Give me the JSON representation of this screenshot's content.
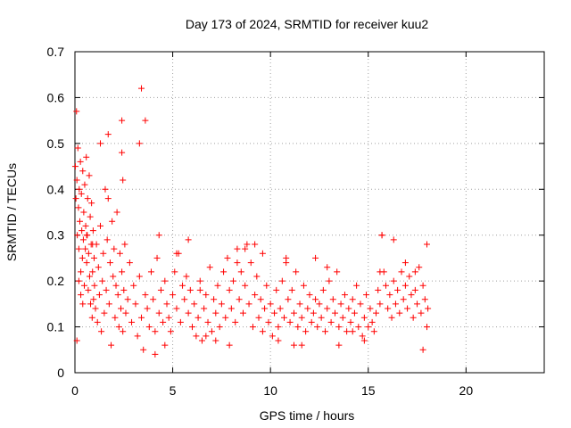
{
  "chart_data": {
    "type": "scatter",
    "title": "Day 173 of 2024, SRMTID for receiver kuu2",
    "xlabel": "GPS time / hours",
    "ylabel": "SRMTID / TECUs",
    "xlim": [
      0,
      24
    ],
    "ylim": [
      0,
      0.7
    ],
    "xticks": [
      0,
      5,
      10,
      15,
      20
    ],
    "yticks": [
      0,
      0.1,
      0.2,
      0.3,
      0.4,
      0.5,
      0.6,
      0.7
    ],
    "xtick_labels": [
      "0",
      "5",
      "10",
      "15",
      "20"
    ],
    "ytick_labels": [
      "0",
      "0.1",
      "0.2",
      "0.3",
      "0.4",
      "0.5",
      "0.6",
      "0.7"
    ],
    "grid": true,
    "marker": "+",
    "color": "#ff0000",
    "series": [
      {
        "name": "SRMTID",
        "x": [
          0.02,
          0.05,
          0.08,
          0.1,
          0.12,
          0.15,
          0.18,
          0.2,
          0.22,
          0.25,
          0.28,
          0.3,
          0.33,
          0.35,
          0.38,
          0.4,
          0.43,
          0.45,
          0.48,
          0.5,
          0.53,
          0.55,
          0.58,
          0.6,
          0.63,
          0.65,
          0.68,
          0.7,
          0.73,
          0.75,
          0.78,
          0.8,
          0.83,
          0.85,
          0.88,
          0.9,
          0.93,
          0.95,
          0.98,
          1.0,
          1.05,
          1.1,
          1.15,
          1.2,
          1.25,
          1.3,
          1.35,
          1.4,
          1.45,
          1.5,
          1.55,
          1.6,
          1.65,
          1.7,
          1.75,
          1.8,
          1.85,
          1.9,
          1.95,
          2.0,
          2.05,
          2.1,
          2.15,
          2.2,
          2.25,
          2.3,
          2.35,
          2.4,
          2.45,
          2.5,
          2.55,
          2.6,
          2.7,
          2.8,
          2.9,
          3.0,
          3.1,
          3.2,
          3.3,
          3.4,
          3.5,
          3.6,
          3.7,
          3.8,
          3.9,
          4.0,
          4.1,
          4.2,
          4.3,
          4.4,
          4.5,
          4.6,
          4.7,
          4.8,
          4.9,
          5.0,
          5.1,
          5.2,
          5.3,
          5.4,
          5.5,
          5.6,
          5.7,
          5.8,
          5.9,
          6.0,
          6.1,
          6.2,
          6.3,
          6.4,
          6.5,
          6.6,
          6.7,
          6.8,
          6.9,
          7.0,
          7.1,
          7.2,
          7.3,
          7.4,
          7.5,
          7.6,
          7.7,
          7.8,
          7.9,
          8.0,
          8.1,
          8.2,
          8.3,
          8.4,
          8.5,
          8.6,
          8.7,
          8.8,
          8.9,
          9.0,
          9.1,
          9.2,
          9.3,
          9.4,
          9.5,
          9.6,
          9.7,
          9.8,
          9.9,
          10.0,
          10.1,
          10.2,
          10.3,
          10.4,
          10.5,
          10.6,
          10.7,
          10.8,
          10.9,
          11.0,
          11.1,
          11.2,
          11.3,
          11.4,
          11.5,
          11.6,
          11.7,
          11.8,
          11.9,
          12.0,
          12.1,
          12.2,
          12.3,
          12.4,
          12.5,
          12.6,
          12.7,
          12.8,
          12.9,
          13.0,
          13.1,
          13.2,
          13.3,
          13.4,
          13.5,
          13.6,
          13.7,
          13.8,
          13.9,
          14.0,
          14.1,
          14.2,
          14.3,
          14.4,
          14.5,
          14.6,
          14.7,
          14.8,
          14.9,
          15.0,
          15.1,
          15.2,
          15.3,
          15.4,
          15.5,
          15.6,
          15.7,
          15.8,
          15.9,
          16.0,
          16.1,
          16.2,
          16.3,
          16.4,
          16.5,
          16.6,
          16.7,
          16.8,
          16.9,
          17.0,
          17.1,
          17.2,
          17.3,
          17.4,
          17.5,
          17.6,
          17.7,
          17.8,
          17.9,
          18.0,
          18.05,
          0.1,
          0.2,
          0.3,
          0.4,
          0.6,
          0.9,
          1.3,
          1.7,
          2.4,
          2.4,
          2.45,
          3.3,
          3.4,
          3.6,
          4.1,
          4.3,
          4.6,
          5.2,
          5.8,
          6.4,
          6.7,
          7.2,
          7.9,
          8.3,
          8.7,
          9.2,
          9.6,
          10.4,
          10.8,
          11.2,
          11.6,
          12.3,
          12.9,
          13.5,
          14.2,
          14.8,
          15.6,
          15.7,
          16.3,
          16.9,
          17.4,
          17.8,
          18.0
        ],
        "y": [
          0.45,
          0.38,
          0.57,
          0.42,
          0.3,
          0.49,
          0.36,
          0.27,
          0.4,
          0.33,
          0.46,
          0.22,
          0.39,
          0.31,
          0.25,
          0.44,
          0.29,
          0.35,
          0.19,
          0.41,
          0.27,
          0.32,
          0.47,
          0.24,
          0.3,
          0.38,
          0.18,
          0.26,
          0.43,
          0.21,
          0.34,
          0.15,
          0.28,
          0.37,
          0.12,
          0.22,
          0.31,
          0.16,
          0.25,
          0.19,
          0.14,
          0.28,
          0.11,
          0.23,
          0.17,
          0.32,
          0.09,
          0.2,
          0.26,
          0.13,
          0.4,
          0.18,
          0.29,
          0.38,
          0.15,
          0.24,
          0.06,
          0.33,
          0.21,
          0.27,
          0.12,
          0.19,
          0.35,
          0.17,
          0.1,
          0.26,
          0.14,
          0.22,
          0.09,
          0.18,
          0.28,
          0.13,
          0.16,
          0.24,
          0.11,
          0.19,
          0.15,
          0.08,
          0.21,
          0.12,
          0.05,
          0.17,
          0.14,
          0.1,
          0.22,
          0.16,
          0.09,
          0.25,
          0.13,
          0.18,
          0.11,
          0.2,
          0.15,
          0.12,
          0.09,
          0.17,
          0.22,
          0.14,
          0.26,
          0.11,
          0.19,
          0.16,
          0.21,
          0.13,
          0.18,
          0.1,
          0.15,
          0.08,
          0.12,
          0.2,
          0.07,
          0.14,
          0.17,
          0.11,
          0.23,
          0.09,
          0.16,
          0.13,
          0.19,
          0.1,
          0.15,
          0.22,
          0.12,
          0.25,
          0.18,
          0.14,
          0.2,
          0.11,
          0.27,
          0.16,
          0.22,
          0.13,
          0.19,
          0.28,
          0.15,
          0.24,
          0.1,
          0.17,
          0.21,
          0.12,
          0.16,
          0.09,
          0.14,
          0.19,
          0.11,
          0.15,
          0.08,
          0.13,
          0.18,
          0.1,
          0.14,
          0.2,
          0.12,
          0.25,
          0.16,
          0.11,
          0.18,
          0.13,
          0.22,
          0.1,
          0.15,
          0.12,
          0.19,
          0.09,
          0.14,
          0.17,
          0.11,
          0.13,
          0.16,
          0.1,
          0.15,
          0.12,
          0.18,
          0.09,
          0.14,
          0.2,
          0.11,
          0.16,
          0.13,
          0.22,
          0.1,
          0.15,
          0.12,
          0.17,
          0.09,
          0.14,
          0.11,
          0.16,
          0.13,
          0.19,
          0.1,
          0.15,
          0.08,
          0.12,
          0.17,
          0.1,
          0.14,
          0.11,
          0.09,
          0.13,
          0.18,
          0.15,
          0.3,
          0.22,
          0.19,
          0.14,
          0.17,
          0.12,
          0.2,
          0.15,
          0.18,
          0.13,
          0.22,
          0.16,
          0.19,
          0.14,
          0.21,
          0.17,
          0.12,
          0.18,
          0.15,
          0.23,
          0.13,
          0.19,
          0.16,
          0.1,
          0.14,
          0.07,
          0.2,
          0.17,
          0.15,
          0.3,
          0.28,
          0.5,
          0.52,
          0.55,
          0.48,
          0.42,
          0.5,
          0.62,
          0.55,
          0.04,
          0.3,
          0.06,
          0.26,
          0.29,
          0.18,
          0.08,
          0.07,
          0.06,
          0.24,
          0.27,
          0.28,
          0.26,
          0.07,
          0.24,
          0.06,
          0.06,
          0.25,
          0.23,
          0.06,
          0.09,
          0.07,
          0.22,
          0.3,
          0.29,
          0.24,
          0.22,
          0.05,
          0.28
        ]
      }
    ]
  }
}
